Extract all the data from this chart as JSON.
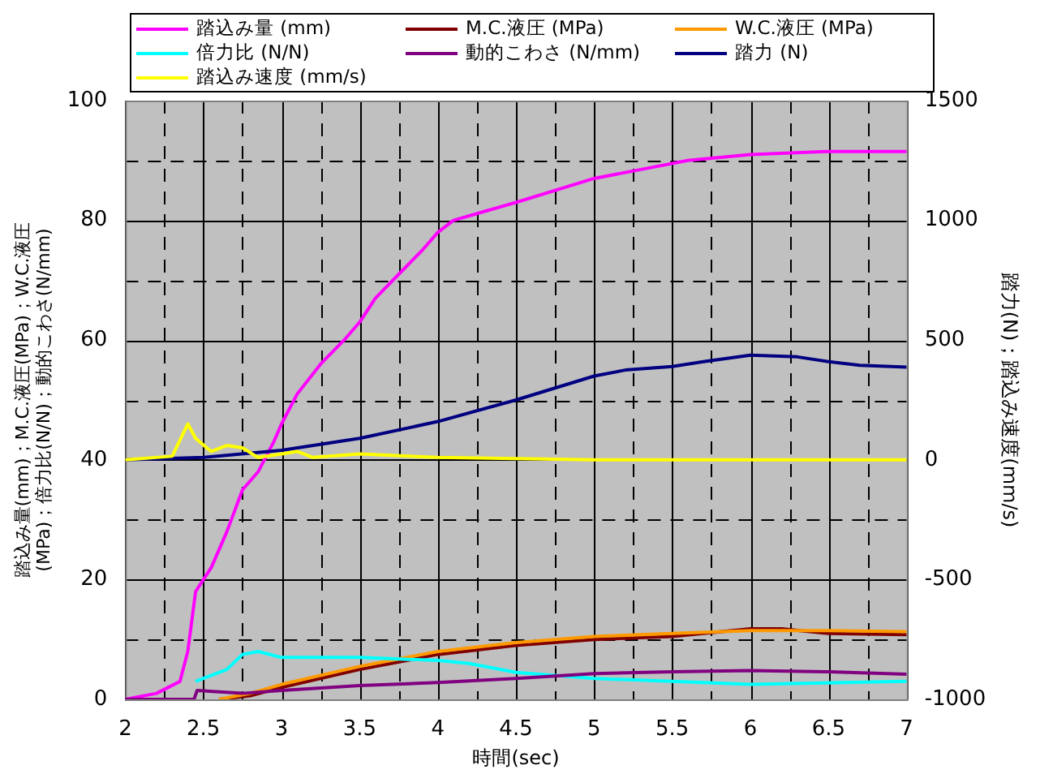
{
  "chart_data": {
    "type": "line",
    "xlabel": "時間(sec)",
    "ylabel": "踏込み量(mm)；M.C.液圧(MPa)；W.C.液圧(MPa)；倍力比(N/N)；動的こわさ(N/mm)",
    "y2label": "踏力(N)；踏込み速度(mm/s)",
    "xlim": [
      2,
      7
    ],
    "xticks": [
      2,
      {
        "value": 2.25,
        "label": null
      },
      2.5,
      {
        "value": 2.75,
        "label": null
      },
      3,
      {
        "value": 3.25,
        "label": null
      },
      3.5,
      {
        "value": 3.75,
        "label": null
      },
      4,
      {
        "value": 4.25,
        "label": null
      },
      4.5,
      {
        "value": 4.75,
        "label": null
      },
      5,
      {
        "value": 5.25,
        "label": null
      },
      5.5,
      {
        "value": 5.75,
        "label": null
      },
      6,
      {
        "value": 6.25,
        "label": null
      },
      6.5,
      {
        "value": 6.75,
        "label": null
      },
      7
    ],
    "ylim": [
      0,
      100
    ],
    "yticks": [
      0,
      {
        "value": 10,
        "label": null
      },
      20,
      {
        "value": 30,
        "label": null
      },
      40,
      {
        "value": 50,
        "label": null
      },
      60,
      {
        "value": 70,
        "label": null
      },
      80,
      {
        "value": 90,
        "label": null
      },
      100
    ],
    "y2lim": [
      -1000,
      1500
    ],
    "y2ticks": [
      -1000,
      -500,
      0,
      500,
      1000,
      1500
    ],
    "grid": true,
    "legend": "top",
    "marker": "none",
    "line_style": "solid",
    "series": [
      {
        "name": "踏込み量 (mm)",
        "color": "#ff00ff",
        "x": [
          2,
          2.2,
          2.35,
          2.4,
          2.45,
          2.55,
          2.65,
          2.75,
          2.85,
          2.95,
          3,
          3.1,
          3.25,
          3.4,
          3.5,
          3.6,
          3.75,
          3.9,
          4,
          4.1,
          4.3,
          4.5,
          5,
          5.3,
          5.6,
          6,
          6.5,
          7
        ],
        "values": [
          0,
          1,
          3,
          8,
          18,
          22,
          28,
          35,
          38,
          43,
          46,
          51,
          56,
          60,
          63,
          67,
          71,
          75,
          78,
          80,
          81.5,
          83,
          87,
          88.5,
          90,
          91,
          91.5,
          91.5
        ]
      },
      {
        "name": "M.C.液圧 (MPa)",
        "color": "#800000",
        "x": [
          2.6,
          2.8,
          3,
          3.5,
          4,
          4.5,
          5,
          5.5,
          6,
          6.2,
          6.5,
          7
        ],
        "values": [
          0,
          0.6,
          2,
          5,
          7.5,
          9,
          10,
          10.5,
          11.8,
          11.8,
          11,
          10.8
        ]
      },
      {
        "name": "W.C.液圧 (MPa)",
        "color": "#ff9900",
        "x": [
          2.6,
          2.8,
          3,
          3.5,
          4,
          4.5,
          5,
          5.5,
          6,
          6.5,
          7
        ],
        "values": [
          0,
          1,
          2.5,
          5.5,
          8,
          9.5,
          10.5,
          11,
          11.5,
          11.5,
          11.3
        ]
      },
      {
        "name": "倍力比 (N/N)",
        "color": "#00ffff",
        "x": [
          2.45,
          2.5,
          2.65,
          2.75,
          2.85,
          3,
          3.5,
          4,
          4.2,
          4.5,
          5,
          6,
          7
        ],
        "values": [
          3,
          3.5,
          5,
          7.5,
          8,
          7,
          7,
          6.5,
          6,
          4.5,
          3.5,
          2.5,
          3
        ]
      },
      {
        "name": "動的こわさ (N/mm)",
        "color": "#800080",
        "x": [
          2,
          2.44,
          2.46,
          2.75,
          3,
          3.5,
          4,
          4.5,
          5,
          5.5,
          6,
          6.5,
          7
        ],
        "values": [
          0,
          0,
          1.5,
          1,
          1.5,
          2.3,
          2.8,
          3.5,
          4.3,
          4.6,
          4.8,
          4.6,
          4.2
        ]
      },
      {
        "name": "踏力 (N)",
        "color": "#000080",
        "axis": "y2",
        "x": [
          2,
          2.5,
          3,
          3.5,
          4,
          4.5,
          5,
          5.2,
          5.5,
          5.7,
          6,
          6.3,
          6.5,
          6.7,
          7
        ],
        "values": [
          0,
          10,
          40,
          90,
          160,
          250,
          350,
          375,
          390,
          410,
          437,
          430,
          410,
          395,
          387
        ]
      },
      {
        "name": "踏込み速度 (mm/s)",
        "color": "#ffff00",
        "axis": "y2",
        "x": [
          2,
          2.3,
          2.4,
          2.45,
          2.55,
          2.65,
          2.75,
          2.85,
          3,
          3.1,
          3.2,
          3.5,
          4,
          5,
          7
        ],
        "values": [
          0,
          15,
          150,
          90,
          35,
          60,
          50,
          10,
          25,
          35,
          10,
          25,
          10,
          0,
          0
        ]
      }
    ]
  }
}
